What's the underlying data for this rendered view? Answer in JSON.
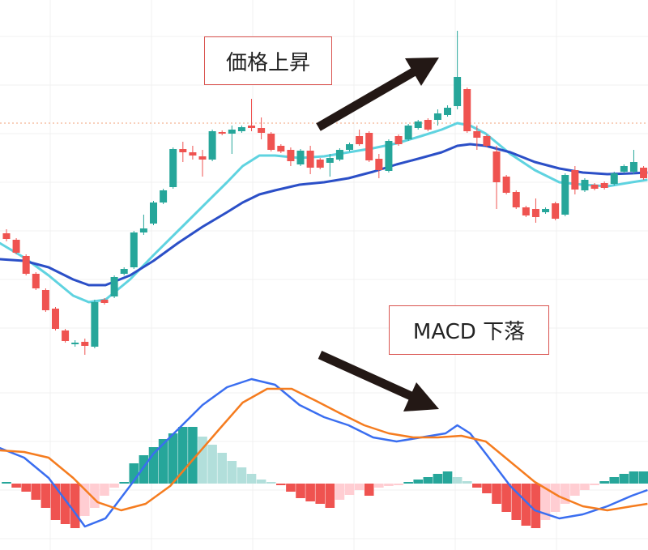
{
  "chart_data": [
    {
      "type": "candlestick",
      "annotation": "価格上昇",
      "grid": true,
      "xlim": [
        -0.66,
        65.45
      ],
      "ylim": [
        0,
        440
      ],
      "up_color": "#26a69a",
      "down_color": "#ef5350",
      "reference_line": 288,
      "reference_color": "#f0a27a",
      "x": [
        0,
        1,
        2,
        3,
        4,
        5,
        6,
        7,
        8,
        9,
        10,
        11,
        12,
        13,
        14,
        15,
        16,
        17,
        18,
        19,
        20,
        21,
        22,
        23,
        24,
        25,
        26,
        27,
        28,
        29,
        30,
        31,
        32,
        33,
        34,
        35,
        36,
        37,
        38,
        39,
        40,
        41,
        42,
        43,
        44,
        45,
        46,
        47,
        48,
        49,
        50,
        51,
        52,
        53,
        54,
        55,
        56,
        57,
        58,
        59,
        60,
        61,
        62,
        63,
        64,
        65
      ],
      "open": [
        152,
        144,
        124,
        102,
        82,
        59,
        32,
        15,
        18,
        12,
        70,
        74,
        102,
        110,
        153,
        164,
        190,
        209,
        256,
        252,
        247,
        243,
        277,
        275,
        278,
        285,
        282,
        275,
        260,
        255,
        237,
        254,
        243,
        239,
        243,
        255,
        272,
        276,
        244,
        229,
        272,
        268,
        282,
        292,
        292,
        298,
        309,
        330,
        278,
        272,
        253,
        222,
        203,
        184,
        182,
        178,
        189,
        175,
        230,
        205,
        212,
        214,
        213,
        228,
        228,
        233
      ],
      "high": [
        157,
        146,
        126,
        104,
        84,
        61,
        34,
        20,
        22,
        70,
        72,
        100,
        110,
        155,
        175,
        192,
        207,
        258,
        265,
        260,
        255,
        280,
        279,
        285,
        285,
        318,
        295,
        277,
        262,
        258,
        256,
        260,
        245,
        250,
        257,
        264,
        280,
        278,
        250,
        268,
        274,
        287,
        292,
        294,
        305,
        310,
        402,
        332,
        285,
        274,
        260,
        224,
        205,
        186,
        195,
        184,
        191,
        226,
        235,
        220,
        214,
        216,
        228,
        237,
        255,
        235
      ],
      "low": [
        142,
        126,
        100,
        82,
        55,
        32,
        17,
        12,
        2,
        10,
        64,
        72,
        100,
        108,
        150,
        162,
        188,
        207,
        240,
        243,
        222,
        241,
        273,
        250,
        276,
        278,
        268,
        253,
        251,
        235,
        235,
        225,
        231,
        222,
        241,
        253,
        260,
        240,
        220,
        227,
        260,
        266,
        280,
        278,
        285,
        296,
        305,
        276,
        255,
        258,
        182,
        200,
        182,
        172,
        165,
        176,
        168,
        173,
        200,
        203,
        205,
        206,
        211,
        226,
        225,
        218
      ],
      "close": [
        145,
        128,
        102,
        84,
        57,
        34,
        19,
        17,
        13,
        67,
        66,
        98,
        108,
        153,
        158,
        190,
        205,
        256,
        252,
        248,
        243,
        278,
        275,
        280,
        283,
        282,
        276,
        255,
        253,
        241,
        254,
        233,
        233,
        245,
        255,
        262,
        262,
        242,
        230,
        266,
        262,
        285,
        290,
        280,
        300,
        307,
        345,
        278,
        270,
        260,
        215,
        202,
        184,
        174,
        172,
        182,
        170,
        224,
        206,
        218,
        207,
        208,
        226,
        235,
        240,
        220
      ],
      "lines": [
        {
          "color": "#5fd3e0",
          "x": [
            -0.7,
            1.8,
            4.3,
            6.8,
            8.4,
            10.1,
            12.6,
            15,
            17.5,
            20,
            22.5,
            24.1,
            25.8,
            27.4,
            29.9,
            32.4,
            34.9,
            37.4,
            39.8,
            42.3,
            44.4,
            46,
            47.3,
            48.9,
            51.4,
            53.9,
            56.4,
            58.8,
            61.3,
            63.8,
            65.4
          ],
          "values": [
            140,
            122,
            100,
            75,
            67,
            70,
            95,
            125,
            155,
            185,
            215,
            235,
            248,
            248,
            245,
            247,
            252,
            257,
            263,
            272,
            280,
            288,
            285,
            275,
            250,
            230,
            215,
            212,
            210,
            215,
            218
          ]
        },
        {
          "color": "#2b4fc7",
          "x": [
            -0.7,
            1.8,
            4.3,
            6.8,
            8.4,
            10.1,
            12.6,
            15,
            17.5,
            20,
            22.5,
            24.1,
            25.8,
            27.4,
            29.9,
            32.4,
            34.9,
            37.4,
            39.8,
            42.3,
            44.4,
            46,
            47.3,
            48.9,
            51.4,
            53.9,
            56.4,
            58.8,
            61.3,
            63.8,
            65.4
          ],
          "values": [
            120,
            118,
            110,
            95,
            88,
            88,
            100,
            118,
            140,
            160,
            178,
            190,
            200,
            205,
            212,
            215,
            220,
            228,
            237,
            245,
            252,
            260,
            262,
            260,
            252,
            240,
            232,
            227,
            225,
            226,
            227
          ]
        }
      ]
    },
    {
      "type": "macd",
      "annotation": "MACD 下落",
      "grid": true,
      "xlim": [
        -0.66,
        65.45
      ],
      "ylim": [
        -82,
        157
      ],
      "rise_color": "#26a69a",
      "fade_color": "#b2dfdb",
      "fall_color": "#ef5350",
      "recover_color": "#ffcdd2",
      "x": [
        0,
        1,
        2,
        3,
        4,
        5,
        6,
        7,
        8,
        9,
        10,
        11,
        12,
        13,
        14,
        15,
        16,
        17,
        18,
        19,
        20,
        21,
        22,
        23,
        24,
        25,
        26,
        27,
        28,
        29,
        30,
        31,
        32,
        33,
        34,
        35,
        36,
        37,
        38,
        39,
        40,
        41,
        42,
        43,
        44,
        45,
        46,
        47,
        48,
        49,
        50,
        51,
        52,
        53,
        54,
        55,
        56,
        57,
        58,
        59,
        60,
        61,
        62,
        63,
        64,
        65
      ],
      "histogram": [
        2,
        -5,
        -10,
        -20,
        -30,
        -45,
        -50,
        -55,
        -40,
        -30,
        -15,
        -5,
        2,
        25,
        35,
        45,
        55,
        62,
        70,
        70,
        58,
        48,
        38,
        28,
        20,
        12,
        5,
        2,
        -2,
        -10,
        -18,
        -22,
        -25,
        -30,
        -20,
        -14,
        -8,
        -15,
        -5,
        -3,
        -2,
        2,
        5,
        8,
        12,
        15,
        8,
        3,
        -5,
        -12,
        -25,
        -35,
        -45,
        -52,
        -55,
        -45,
        -35,
        -25,
        -15,
        -8,
        -2,
        3,
        8,
        12,
        15,
        15
      ],
      "lines": [
        {
          "color": "#3a6ef0",
          "x": [
            -0.7,
            1.8,
            4.3,
            6.8,
            8.0,
            10.1,
            12.6,
            15,
            17.5,
            20,
            22.5,
            25,
            27.4,
            29.9,
            32.4,
            34.9,
            37.4,
            39.8,
            42.3,
            44.8,
            46,
            47.3,
            48.9,
            51.4,
            53.9,
            56.4,
            58.8,
            61.3,
            63.8,
            65.4
          ],
          "values": [
            44,
            32,
            7,
            -33,
            -53,
            -43,
            -3,
            37,
            67,
            97,
            119,
            129,
            122,
            97,
            82,
            72,
            57,
            52,
            57,
            62,
            72,
            62,
            37,
            -3,
            -33,
            -43,
            -38,
            -28,
            -15,
            -8
          ]
        },
        {
          "color": "#f57c1f",
          "x": [
            -0.7,
            1.8,
            4.3,
            6.8,
            9.3,
            11.7,
            14.2,
            16.7,
            19.2,
            21.7,
            24.1,
            26.6,
            29.1,
            31.6,
            34,
            36.5,
            39,
            41.5,
            44,
            46.4,
            48.9,
            51.4,
            53.9,
            56.4,
            58.8,
            61.3,
            63.8,
            65.4
          ],
          "values": [
            41,
            39,
            32,
            7,
            -23,
            -33,
            -25,
            -3,
            32,
            67,
            100,
            117,
            117,
            102,
            87,
            72,
            62,
            57,
            57,
            59,
            52,
            27,
            2,
            -16,
            -28,
            -33,
            -28,
            -25
          ]
        }
      ]
    }
  ]
}
